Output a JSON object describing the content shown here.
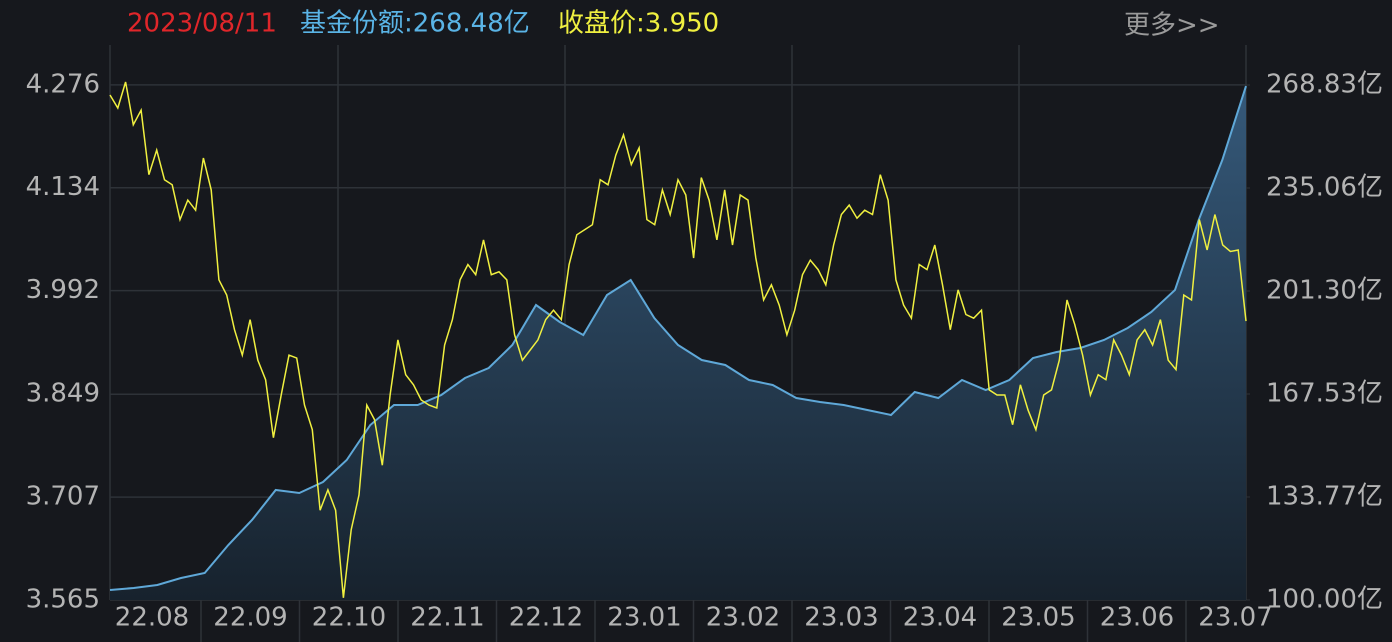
{
  "chart_data": {
    "type": "line-area",
    "date": "2023/08/11",
    "share_label": "基金份额:268.48亿",
    "price_label": "收盘价:3.950",
    "more": "更多>>",
    "x_axis_labels": [
      "22.08",
      "22.09",
      "22.10",
      "22.11",
      "22.12",
      "23.01",
      "23.02",
      "23.03",
      "23.04",
      "23.05",
      "23.06",
      "23.07"
    ],
    "ylim": [
      3.565,
      4.331
    ],
    "yticks": [
      3.565,
      3.707,
      3.849,
      3.992,
      4.134,
      4.276
    ],
    "y2lim": [
      100,
      281.94
    ],
    "y2ticks": [
      {
        "value": 100,
        "label": "100.00亿"
      },
      {
        "value": 133.77,
        "label": "133.77亿"
      },
      {
        "value": 167.53,
        "label": "167.53亿"
      },
      {
        "value": 201.3,
        "label": "201.30亿"
      },
      {
        "value": 235.06,
        "label": "235.06亿"
      },
      {
        "value": 268.83,
        "label": "268.83亿"
      }
    ],
    "grid": true,
    "series": [
      {
        "name": "收盘价",
        "color": "#f0f040",
        "axis": "y",
        "values": [
          4.262,
          4.244,
          4.28,
          4.221,
          4.241,
          4.152,
          4.186,
          4.145,
          4.138,
          4.09,
          4.117,
          4.103,
          4.175,
          4.131,
          4.007,
          3.986,
          3.938,
          3.903,
          3.952,
          3.896,
          3.869,
          3.789,
          3.848,
          3.903,
          3.899,
          3.834,
          3.8,
          3.689,
          3.717,
          3.689,
          3.568,
          3.662,
          3.71,
          3.834,
          3.814,
          3.751,
          3.848,
          3.924,
          3.876,
          3.862,
          3.841,
          3.834,
          3.83,
          3.917,
          3.952,
          4.007,
          4.028,
          4.014,
          4.062,
          4.014,
          4.018,
          4.007,
          3.931,
          3.896,
          3.91,
          3.924,
          3.952,
          3.965,
          3.952,
          4.028,
          4.069,
          4.076,
          4.083,
          4.145,
          4.138,
          4.179,
          4.207,
          4.166,
          4.189,
          4.09,
          4.083,
          4.131,
          4.097,
          4.145,
          4.124,
          4.037,
          4.148,
          4.117,
          4.062,
          4.131,
          4.055,
          4.124,
          4.117,
          4.037,
          3.979,
          4.0,
          3.972,
          3.931,
          3.965,
          4.014,
          4.034,
          4.021,
          4.0,
          4.055,
          4.097,
          4.11,
          4.092,
          4.103,
          4.097,
          4.152,
          4.117,
          4.007,
          3.972,
          3.954,
          4.028,
          4.021,
          4.055,
          4.0,
          3.938,
          3.993,
          3.959,
          3.954,
          3.965,
          3.855,
          3.848,
          3.848,
          3.807,
          3.862,
          3.827,
          3.8,
          3.848,
          3.855,
          3.896,
          3.979,
          3.945,
          3.903,
          3.848,
          3.876,
          3.869,
          3.924,
          3.903,
          3.876,
          3.924,
          3.938,
          3.917,
          3.952,
          3.896,
          3.883,
          3.986,
          3.979,
          4.09,
          4.048,
          4.097,
          4.055,
          4.046,
          4.048,
          3.95
        ]
      },
      {
        "name": "基金份额",
        "color": "#5fa8d8",
        "axis": "y2",
        "values": [
          103.28,
          103.93,
          104.92,
          107.21,
          108.85,
          118.03,
          126.23,
          136.06,
          135.08,
          138.68,
          145.9,
          157.37,
          163.93,
          163.93,
          167.21,
          172.78,
          176.06,
          183.6,
          196.71,
          191.14,
          186.87,
          199.99,
          204.91,
          192.45,
          183.6,
          178.68,
          177.04,
          172.12,
          170.48,
          166.22,
          164.91,
          163.93,
          162.29,
          160.65,
          168.19,
          166.22,
          172.12,
          168.84,
          172.12,
          179.33,
          181.3,
          182.61,
          185.24,
          189.17,
          194.41,
          201.63,
          224.58,
          244.25,
          268.48
        ]
      }
    ]
  }
}
